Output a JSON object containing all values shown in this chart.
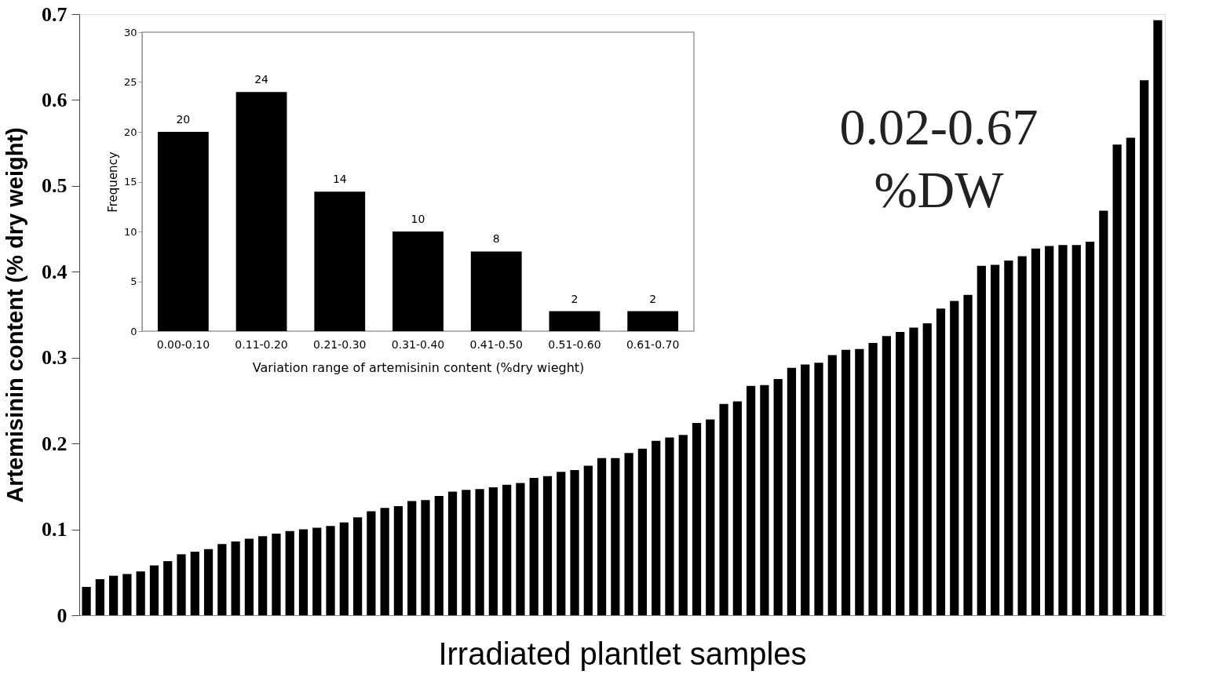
{
  "chart_data": [
    {
      "type": "bar",
      "xlabel": "Irradiated plantlet samples",
      "ylabel": "Artemisinin content (% dry weight)",
      "color": "#000000",
      "ylim": [
        0,
        0.7
      ],
      "yticks": [
        0,
        0.1,
        0.2,
        0.3,
        0.4,
        0.5,
        0.6,
        0.7
      ],
      "grid": false,
      "categories": [
        null,
        null,
        null,
        null,
        null,
        null,
        null,
        null,
        null,
        null,
        null,
        null,
        null,
        null,
        null,
        null,
        null,
        null,
        null,
        null,
        null,
        null,
        null,
        null,
        null,
        null,
        null,
        null,
        null,
        null,
        null,
        null,
        null,
        null,
        null,
        null,
        null,
        null,
        null,
        null,
        null,
        null,
        null,
        null,
        null,
        null,
        null,
        null,
        null,
        null,
        null,
        null,
        null,
        null,
        null,
        null,
        null,
        null,
        null,
        null,
        null,
        null,
        null,
        null,
        null,
        null,
        null,
        null,
        null,
        null,
        null,
        null,
        null,
        null,
        null,
        null,
        null,
        null,
        null,
        null
      ],
      "values": [
        0.033,
        0.042,
        0.046,
        0.048,
        0.051,
        0.058,
        0.063,
        0.071,
        0.074,
        0.077,
        0.083,
        0.086,
        0.089,
        0.092,
        0.095,
        0.098,
        0.1,
        0.102,
        0.104,
        0.108,
        0.114,
        0.121,
        0.125,
        0.127,
        0.133,
        0.134,
        0.139,
        0.144,
        0.146,
        0.147,
        0.149,
        0.152,
        0.154,
        0.16,
        0.162,
        0.167,
        0.169,
        0.174,
        0.183,
        0.183,
        0.189,
        0.194,
        0.203,
        0.207,
        0.21,
        0.224,
        0.228,
        0.246,
        0.249,
        0.267,
        0.268,
        0.275,
        0.288,
        0.292,
        0.294,
        0.303,
        0.309,
        0.31,
        0.317,
        0.325,
        0.33,
        0.335,
        0.34,
        0.357,
        0.366,
        0.373,
        0.407,
        0.408,
        0.413,
        0.418,
        0.427,
        0.43,
        0.431,
        0.431,
        0.435,
        0.471,
        0.548,
        0.556,
        0.623,
        0.693
      ],
      "annotations": [
        "0.02-0.67",
        "%DW"
      ]
    },
    {
      "type": "bar",
      "xlabel": "Variation range of artemisinin content (%dry wieght)",
      "ylabel": "Frequency",
      "color": "#000000",
      "ylim": [
        0,
        30
      ],
      "yticks": [
        0,
        5,
        10,
        15,
        20,
        25,
        30
      ],
      "grid": false,
      "data_labels": true,
      "categories": [
        "0.00-0.10",
        "0.11-0.20",
        "0.21-0.30",
        "0.31-0.40",
        "0.41-0.50",
        "0.51-0.60",
        "0.61-0.70"
      ],
      "values": [
        20,
        24,
        14,
        10,
        8,
        2,
        2
      ]
    }
  ]
}
